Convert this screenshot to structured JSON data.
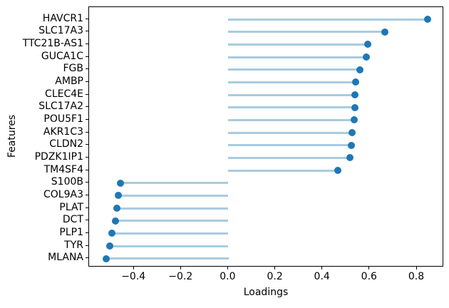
{
  "chart_data": {
    "type": "scatter",
    "style": "horizontal-lollipop",
    "title": "",
    "xlabel": "Loadings",
    "ylabel": "Features",
    "categories": [
      "HAVCR1",
      "SLC17A3",
      "TTC21B-AS1",
      "GUCA1C",
      "FGB",
      "AMBP",
      "CLEC4E",
      "SLC17A2",
      "POU5F1",
      "AKR1C3",
      "CLDN2",
      "PDZK1IP1",
      "TM4SF4",
      "S100B",
      "COL9A3",
      "PLAT",
      "DCT",
      "PLP1",
      "TYR",
      "MLANA"
    ],
    "values": [
      0.846,
      0.665,
      0.591,
      0.585,
      0.557,
      0.539,
      0.537,
      0.537,
      0.535,
      0.525,
      0.522,
      0.515,
      0.464,
      -0.459,
      -0.466,
      -0.472,
      -0.478,
      -0.494,
      -0.502,
      -0.52
    ],
    "stem_baseline": 0.0,
    "xlim": [
      -0.591,
      0.915
    ],
    "x_tick_values": [
      -0.4,
      -0.2,
      0.0,
      0.2,
      0.4,
      0.6,
      0.8
    ],
    "x_tick_labels": [
      "−0.4",
      "−0.2",
      "0.0",
      "0.2",
      "0.4",
      "0.6",
      "0.8"
    ],
    "grid": false,
    "legend": null,
    "colors": {
      "marker": "#1f77b4",
      "stem": "#a8cbe0",
      "spine": "#000000",
      "text": "#000000",
      "background": "#ffffff"
    }
  }
}
